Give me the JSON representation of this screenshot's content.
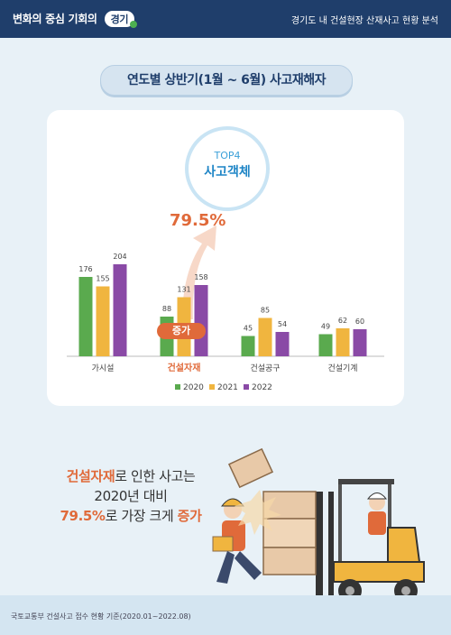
{
  "header": {
    "brand_text": "변화의 중심 기회의",
    "brand_badge": "경기",
    "title": "경기도 내 건설현장 산재사고 현황 분석"
  },
  "main_title": "연도별 상반기(1월 ~ 6월) 사고재해자",
  "top4": {
    "line1": "TOP4",
    "line2": "사고객체"
  },
  "highlight_percent": "79.5%",
  "increase_tag": "증가",
  "chart_data": {
    "type": "bar",
    "categories": [
      "가시설",
      "건설자재",
      "건설공구",
      "건설기계"
    ],
    "series": [
      {
        "name": "2020",
        "values": [
          176,
          88,
          45,
          49
        ],
        "color": "#5aaa4e"
      },
      {
        "name": "2021",
        "values": [
          155,
          131,
          85,
          62
        ],
        "color": "#f0b53f"
      },
      {
        "name": "2022",
        "values": [
          204,
          158,
          54,
          60
        ],
        "color": "#8a4aa6"
      }
    ],
    "highlight_category": "건설자재",
    "legend_position": "bottom",
    "grid": false,
    "ylim": [
      0,
      204
    ]
  },
  "caption": {
    "line1_hl": "건설자재",
    "line1_rest": "로 인한 사고는",
    "line2": "2020년 대비",
    "line3_hl1": "79.5%",
    "line3_mid": "로 가장 크게 ",
    "line3_hl2": "증가"
  },
  "source": "국토교통부 건설사고 접수 현황 기준(2020.01~2022.08)"
}
